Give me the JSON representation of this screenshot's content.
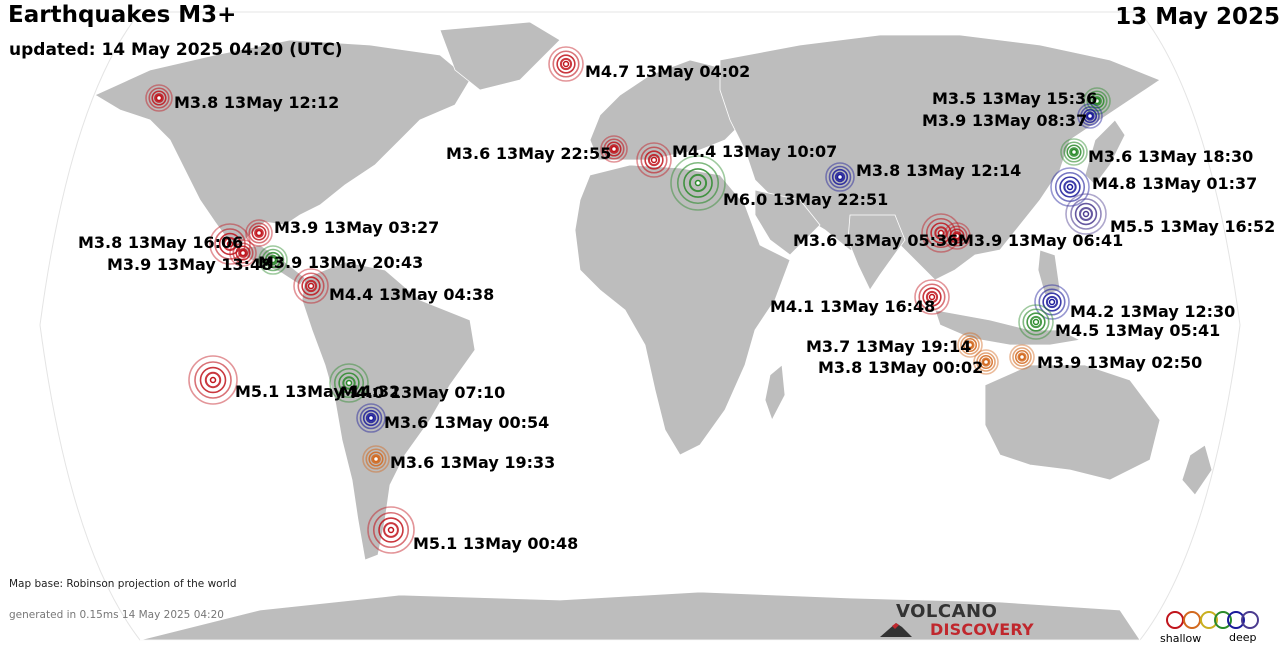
{
  "header": {
    "title": "Earthquakes M3+",
    "updated": "updated: 14 May 2025 04:20 (UTC)",
    "date": "13 May 2025"
  },
  "footer": {
    "map_base": "Map base: Robinson projection of the world",
    "generated": "generated in 0.15ms 14 May 2025 04:20"
  },
  "logo": {
    "line1": "VOLCANO",
    "line2": "DISCOVERY"
  },
  "depth_legend": {
    "shallow": "shallow",
    "deep": "deep"
  },
  "colors": {
    "ocean": "#ffffff",
    "land": "#bdbdbd",
    "depth_shallow_red": "#c0141c",
    "depth_orange": "#d2691e",
    "depth_green": "#2a8a2a",
    "depth_blue": "#1a1a9a",
    "depth_deep_purple": "#4b3b8f"
  },
  "earthquakes": [
    {
      "label": "M4.7 13May 04:02",
      "depth_class": "red"
    },
    {
      "label": "M3.8 13May 12:12",
      "depth_class": "red"
    },
    {
      "label": "M3.5 13May 15:36",
      "depth_class": "green"
    },
    {
      "label": "M3.9 13May 08:37",
      "depth_class": "blue"
    },
    {
      "label": "M3.6 13May 22:55",
      "depth_class": "red"
    },
    {
      "label": "M4.4 13May 10:07",
      "depth_class": "red"
    },
    {
      "label": "M3.6 13May 18:30",
      "depth_class": "green"
    },
    {
      "label": "M3.8 13May 12:14",
      "depth_class": "blue"
    },
    {
      "label": "M4.8 13May 01:37",
      "depth_class": "blue"
    },
    {
      "label": "M6.0 13May 22:51",
      "depth_class": "green"
    },
    {
      "label": "M5.5 13May 16:52",
      "depth_class": "purple"
    },
    {
      "label": "M3.9 13May 03:27",
      "depth_class": "red"
    },
    {
      "label": "M3.8 13May 16:06",
      "depth_class": "red"
    },
    {
      "label": "M3.6 13May 05:36",
      "depth_class": "red"
    },
    {
      "label": "M3.9 13May 06:41",
      "depth_class": "red"
    },
    {
      "label": "M3.9 13May 13:48",
      "depth_class": "red"
    },
    {
      "label": "M3.9 13May 20:43",
      "depth_class": "green"
    },
    {
      "label": "M4.4 13May 04:38",
      "depth_class": "red"
    },
    {
      "label": "M4.1 13May 16:48",
      "depth_class": "red"
    },
    {
      "label": "M4.2 13May 12:30",
      "depth_class": "blue"
    },
    {
      "label": "M4.5 13May 05:41",
      "depth_class": "green"
    },
    {
      "label": "M3.7 13May 19:14",
      "depth_class": "orange"
    },
    {
      "label": "M3.9 13May 02:50",
      "depth_class": "orange"
    },
    {
      "label": "M3.8 13May 00:02",
      "depth_class": "orange"
    },
    {
      "label": "M5.1 13May 14:32",
      "depth_class": "red"
    },
    {
      "label": "M4.0 13May 07:10",
      "depth_class": "green"
    },
    {
      "label": "M3.6 13May 00:54",
      "depth_class": "blue"
    },
    {
      "label": "M3.6 13May 19:33",
      "depth_class": "orange"
    },
    {
      "label": "M5.1 13May 00:48",
      "depth_class": "red"
    }
  ]
}
